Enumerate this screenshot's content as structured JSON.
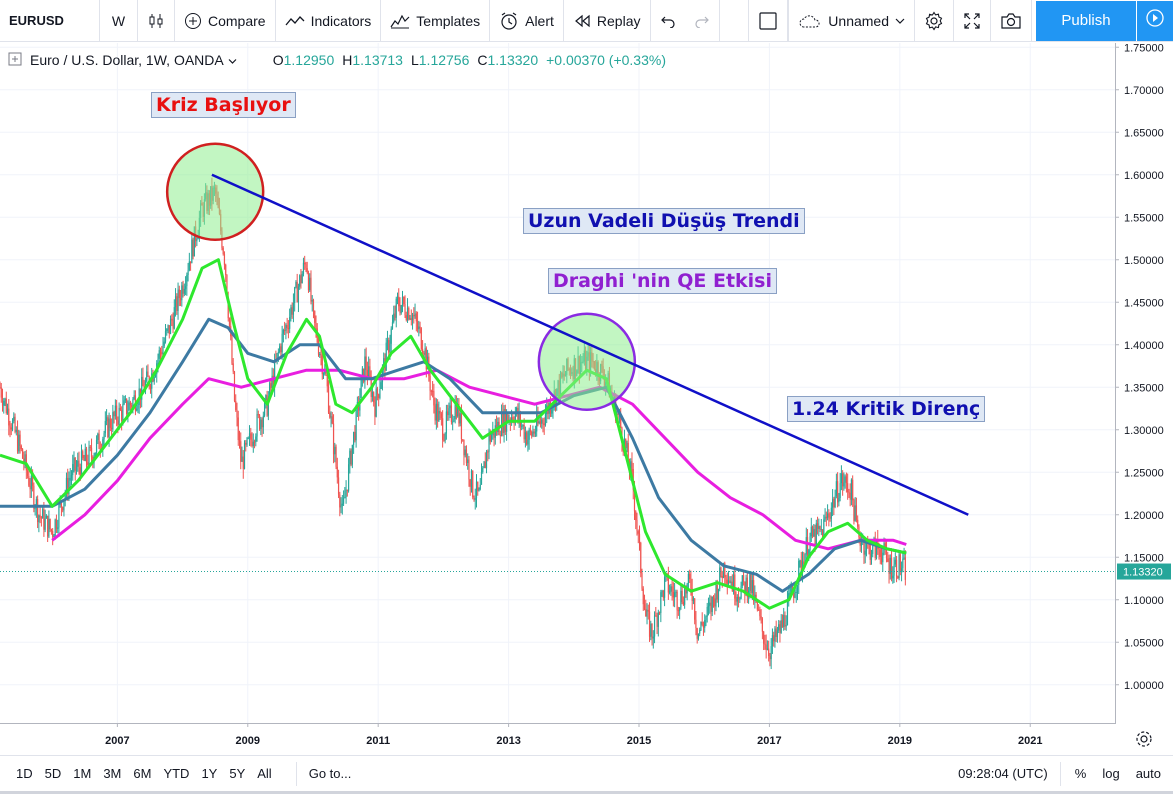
{
  "toolbar": {
    "symbol": "EURUSD",
    "interval": "W",
    "compare": "Compare",
    "indicators": "Indicators",
    "templates": "Templates",
    "alert": "Alert",
    "replay": "Replay",
    "layout_name": "Unnamed",
    "publish": "Publish"
  },
  "legend": {
    "title": "Euro / U.S. Dollar, 1W, OANDA",
    "o_label": "O",
    "o": "1.12950",
    "h_label": "H",
    "h": "1.13713",
    "l_label": "L",
    "l": "1.12756",
    "c_label": "C",
    "c": "1.13320",
    "change": "+0.00370 (+0.33%)"
  },
  "annotations": {
    "crisis": "Kriz Başlıyor",
    "trend": "Uzun Vadeli Düşüş Trendi",
    "qe": "Draghi 'nin QE Etkisi",
    "resistance": "1.24 Kritik Direnç"
  },
  "colors": {
    "up": "#26a69a",
    "down": "#ef5350",
    "ma_fast": "#2ee82e",
    "ma_mid": "#3d7aa3",
    "ma_slow": "#e81ee0",
    "trendline": "#1010c8",
    "accent": "#2196f3",
    "crisis_text": "#e81010",
    "trend_text": "#1010b0",
    "qe_text": "#9020d0"
  },
  "bottom": {
    "ranges": [
      "1D",
      "5D",
      "1M",
      "3M",
      "6M",
      "YTD",
      "1Y",
      "5Y",
      "All"
    ],
    "goto": "Go to...",
    "time": "09:28:04 (UTC)",
    "percent": "%",
    "log": "log",
    "auto": "auto"
  },
  "chart_data": {
    "type": "candlestick",
    "symbol": "EURUSD",
    "timeframe": "1W",
    "last_price": "1.13320",
    "x_ticks": [
      "2007",
      "2009",
      "2011",
      "2013",
      "2015",
      "2017",
      "2019",
      "2021"
    ],
    "y_ticks": [
      "1.00000",
      "1.05000",
      "1.10000",
      "1.15000",
      "1.20000",
      "1.25000",
      "1.30000",
      "1.35000",
      "1.40000",
      "1.45000",
      "1.50000",
      "1.55000",
      "1.60000",
      "1.65000",
      "1.70000",
      "1.75000"
    ],
    "y_range": [
      0.955,
      1.755
    ],
    "x_range": [
      2005.2,
      2022.3
    ],
    "price_path": [
      [
        2005.2,
        1.35
      ],
      [
        2005.5,
        1.28
      ],
      [
        2005.8,
        1.2
      ],
      [
        2006.0,
        1.18
      ],
      [
        2006.3,
        1.25
      ],
      [
        2006.6,
        1.27
      ],
      [
        2006.9,
        1.31
      ],
      [
        2007.2,
        1.33
      ],
      [
        2007.5,
        1.36
      ],
      [
        2007.8,
        1.42
      ],
      [
        2008.0,
        1.47
      ],
      [
        2008.3,
        1.56
      ],
      [
        2008.5,
        1.58
      ],
      [
        2008.65,
        1.5
      ],
      [
        2008.8,
        1.33
      ],
      [
        2008.9,
        1.26
      ],
      [
        2009.1,
        1.3
      ],
      [
        2009.3,
        1.33
      ],
      [
        2009.5,
        1.4
      ],
      [
        2009.7,
        1.45
      ],
      [
        2009.9,
        1.5
      ],
      [
        2010.0,
        1.43
      ],
      [
        2010.2,
        1.36
      ],
      [
        2010.35,
        1.26
      ],
      [
        2010.45,
        1.2
      ],
      [
        2010.6,
        1.28
      ],
      [
        2010.8,
        1.38
      ],
      [
        2010.95,
        1.33
      ],
      [
        2011.1,
        1.38
      ],
      [
        2011.3,
        1.45
      ],
      [
        2011.5,
        1.44
      ],
      [
        2011.7,
        1.4
      ],
      [
        2011.85,
        1.33
      ],
      [
        2012.0,
        1.3
      ],
      [
        2012.2,
        1.33
      ],
      [
        2012.45,
        1.23
      ],
      [
        2012.55,
        1.22
      ],
      [
        2012.7,
        1.29
      ],
      [
        2012.9,
        1.31
      ],
      [
        2013.1,
        1.32
      ],
      [
        2013.3,
        1.29
      ],
      [
        2013.5,
        1.31
      ],
      [
        2013.7,
        1.34
      ],
      [
        2013.9,
        1.37
      ],
      [
        2014.1,
        1.38
      ],
      [
        2014.3,
        1.38
      ],
      [
        2014.5,
        1.36
      ],
      [
        2014.7,
        1.31
      ],
      [
        2014.9,
        1.24
      ],
      [
        2015.0,
        1.16
      ],
      [
        2015.1,
        1.08
      ],
      [
        2015.2,
        1.06
      ],
      [
        2015.4,
        1.12
      ],
      [
        2015.6,
        1.1
      ],
      [
        2015.8,
        1.12
      ],
      [
        2015.9,
        1.06
      ],
      [
        2016.1,
        1.09
      ],
      [
        2016.3,
        1.14
      ],
      [
        2016.5,
        1.11
      ],
      [
        2016.7,
        1.12
      ],
      [
        2016.9,
        1.06
      ],
      [
        2017.0,
        1.04
      ],
      [
        2017.2,
        1.07
      ],
      [
        2017.4,
        1.12
      ],
      [
        2017.6,
        1.17
      ],
      [
        2017.8,
        1.18
      ],
      [
        2018.0,
        1.22
      ],
      [
        2018.1,
        1.24
      ],
      [
        2018.25,
        1.23
      ],
      [
        2018.35,
        1.18
      ],
      [
        2018.5,
        1.16
      ],
      [
        2018.7,
        1.16
      ],
      [
        2018.85,
        1.14
      ],
      [
        2019.0,
        1.14
      ],
      [
        2019.1,
        1.133
      ]
    ],
    "ma_fast": [
      [
        2005.2,
        1.27
      ],
      [
        2005.6,
        1.26
      ],
      [
        2006.0,
        1.21
      ],
      [
        2006.4,
        1.24
      ],
      [
        2006.8,
        1.28
      ],
      [
        2007.2,
        1.32
      ],
      [
        2007.6,
        1.37
      ],
      [
        2008.0,
        1.43
      ],
      [
        2008.3,
        1.49
      ],
      [
        2008.55,
        1.5
      ],
      [
        2008.8,
        1.42
      ],
      [
        2009.0,
        1.36
      ],
      [
        2009.3,
        1.33
      ],
      [
        2009.6,
        1.39
      ],
      [
        2009.9,
        1.43
      ],
      [
        2010.1,
        1.41
      ],
      [
        2010.35,
        1.33
      ],
      [
        2010.6,
        1.32
      ],
      [
        2010.9,
        1.35
      ],
      [
        2011.2,
        1.39
      ],
      [
        2011.5,
        1.41
      ],
      [
        2011.8,
        1.37
      ],
      [
        2012.2,
        1.33
      ],
      [
        2012.6,
        1.29
      ],
      [
        2013.0,
        1.31
      ],
      [
        2013.4,
        1.31
      ],
      [
        2013.8,
        1.34
      ],
      [
        2014.2,
        1.37
      ],
      [
        2014.5,
        1.36
      ],
      [
        2014.8,
        1.27
      ],
      [
        2015.1,
        1.18
      ],
      [
        2015.4,
        1.13
      ],
      [
        2015.8,
        1.11
      ],
      [
        2016.2,
        1.12
      ],
      [
        2016.6,
        1.11
      ],
      [
        2017.0,
        1.09
      ],
      [
        2017.3,
        1.1
      ],
      [
        2017.6,
        1.15
      ],
      [
        2017.9,
        1.18
      ],
      [
        2018.2,
        1.19
      ],
      [
        2018.5,
        1.17
      ],
      [
        2018.8,
        1.16
      ],
      [
        2019.1,
        1.155
      ]
    ],
    "ma_mid": [
      [
        2005.2,
        1.21
      ],
      [
        2005.6,
        1.21
      ],
      [
        2006.0,
        1.21
      ],
      [
        2006.5,
        1.23
      ],
      [
        2007.0,
        1.27
      ],
      [
        2007.5,
        1.32
      ],
      [
        2008.0,
        1.38
      ],
      [
        2008.4,
        1.43
      ],
      [
        2008.7,
        1.42
      ],
      [
        2009.0,
        1.39
      ],
      [
        2009.4,
        1.38
      ],
      [
        2009.8,
        1.4
      ],
      [
        2010.1,
        1.4
      ],
      [
        2010.5,
        1.36
      ],
      [
        2010.9,
        1.36
      ],
      [
        2011.3,
        1.37
      ],
      [
        2011.7,
        1.38
      ],
      [
        2012.1,
        1.36
      ],
      [
        2012.6,
        1.32
      ],
      [
        2013.0,
        1.32
      ],
      [
        2013.5,
        1.32
      ],
      [
        2014.0,
        1.34
      ],
      [
        2014.5,
        1.35
      ],
      [
        2014.9,
        1.29
      ],
      [
        2015.3,
        1.22
      ],
      [
        2015.8,
        1.17
      ],
      [
        2016.3,
        1.14
      ],
      [
        2016.8,
        1.13
      ],
      [
        2017.2,
        1.11
      ],
      [
        2017.6,
        1.13
      ],
      [
        2018.0,
        1.16
      ],
      [
        2018.4,
        1.17
      ],
      [
        2018.8,
        1.16
      ],
      [
        2019.1,
        1.155
      ]
    ],
    "ma_slow": [
      [
        2006.0,
        1.17
      ],
      [
        2006.5,
        1.2
      ],
      [
        2007.0,
        1.24
      ],
      [
        2007.5,
        1.29
      ],
      [
        2008.0,
        1.33
      ],
      [
        2008.4,
        1.36
      ],
      [
        2008.9,
        1.35
      ],
      [
        2009.4,
        1.36
      ],
      [
        2009.9,
        1.37
      ],
      [
        2010.4,
        1.37
      ],
      [
        2010.9,
        1.36
      ],
      [
        2011.4,
        1.36
      ],
      [
        2011.9,
        1.37
      ],
      [
        2012.4,
        1.35
      ],
      [
        2012.9,
        1.34
      ],
      [
        2013.4,
        1.33
      ],
      [
        2013.9,
        1.34
      ],
      [
        2014.4,
        1.35
      ],
      [
        2014.9,
        1.33
      ],
      [
        2015.4,
        1.29
      ],
      [
        2015.9,
        1.25
      ],
      [
        2016.4,
        1.22
      ],
      [
        2016.9,
        1.2
      ],
      [
        2017.4,
        1.17
      ],
      [
        2017.9,
        1.16
      ],
      [
        2018.4,
        1.17
      ],
      [
        2018.9,
        1.17
      ],
      [
        2019.1,
        1.165
      ]
    ],
    "trendline": [
      [
        2008.45,
        1.6
      ],
      [
        2020.05,
        1.2
      ]
    ],
    "circles": [
      {
        "name": "crisis-circle",
        "x": 2008.5,
        "y": 1.58,
        "fill": "#90ee90",
        "stroke": "#d02020"
      },
      {
        "name": "qe-circle",
        "x": 2014.2,
        "y": 1.38,
        "fill": "#90ee90",
        "stroke": "#8a2be2"
      }
    ]
  }
}
